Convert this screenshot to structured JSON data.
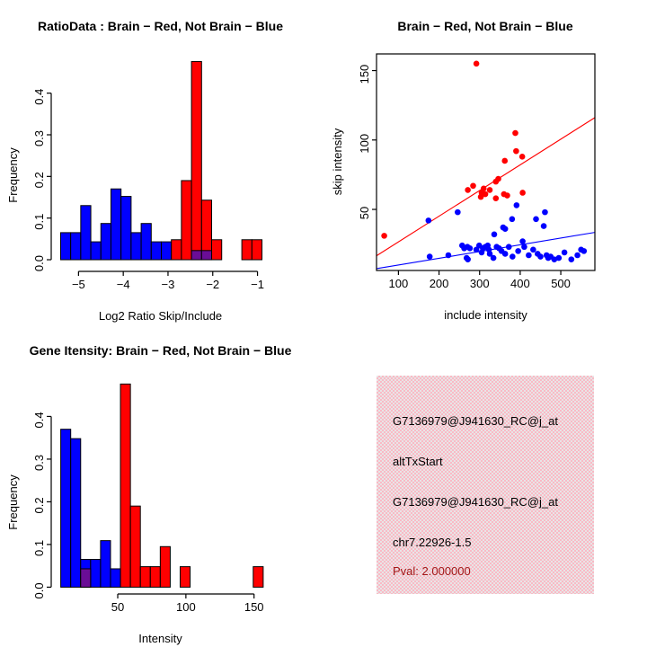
{
  "colors": {
    "red": "#ff0000",
    "blue": "#0000ff",
    "overlap_purple": "#6a0d96",
    "axis_black": "#000000",
    "background": "#ffffff",
    "info_panel_pink": "#f9bac5",
    "info_panel_dither": "#e9e4e6",
    "pval_text": "#a01818",
    "info_text": "#000000"
  },
  "chart_data": [
    {
      "id": "ratio_histogram",
      "type": "bar",
      "title": "RatioData : Brain − Red, Not Brain − Blue",
      "xlabel": "Log2 Ratio Skip/Include",
      "ylabel": "Frequency",
      "legend": "none",
      "grid": false,
      "xlim": [
        -5.61,
        -0.73
      ],
      "ylim": [
        -0.028,
        0.505
      ],
      "bin_width": 0.225,
      "xticks": [
        {
          "v": -5,
          "label": "−5"
        },
        {
          "v": -4,
          "label": "−4"
        },
        {
          "v": -3,
          "label": "−3"
        },
        {
          "v": -2,
          "label": "−2"
        },
        {
          "v": -1,
          "label": "−1"
        }
      ],
      "yticks": [
        {
          "v": 0.0,
          "label": "0.0"
        },
        {
          "v": 0.1,
          "label": "0.1"
        },
        {
          "v": 0.2,
          "label": "0.2"
        },
        {
          "v": 0.3,
          "label": "0.3"
        },
        {
          "v": 0.4,
          "label": "0.4"
        }
      ],
      "bars": [
        {
          "x": -5.4,
          "h": 0.065,
          "color": "blue"
        },
        {
          "x": -5.175,
          "h": 0.065,
          "color": "blue"
        },
        {
          "x": -4.95,
          "h": 0.13,
          "color": "blue"
        },
        {
          "x": -4.725,
          "h": 0.043,
          "color": "blue"
        },
        {
          "x": -4.5,
          "h": 0.087,
          "color": "blue"
        },
        {
          "x": -4.275,
          "h": 0.17,
          "color": "blue"
        },
        {
          "x": -4.05,
          "h": 0.152,
          "color": "blue"
        },
        {
          "x": -3.825,
          "h": 0.065,
          "color": "blue"
        },
        {
          "x": -3.6,
          "h": 0.087,
          "color": "blue"
        },
        {
          "x": -3.375,
          "h": 0.043,
          "color": "blue"
        },
        {
          "x": -3.15,
          "h": 0.043,
          "color": "blue"
        },
        {
          "x": -2.925,
          "h": 0.048,
          "color": "red"
        },
        {
          "x": -2.7,
          "h": 0.19,
          "color": "red"
        },
        {
          "x": -2.475,
          "h": 0.476,
          "color": "red"
        },
        {
          "x": -2.25,
          "h": 0.143,
          "color": "red"
        },
        {
          "x": -2.025,
          "h": 0.048,
          "color": "red"
        },
        {
          "x": -1.35,
          "h": 0.048,
          "color": "red"
        },
        {
          "x": -1.125,
          "h": 0.048,
          "color": "red"
        }
      ],
      "overlap_bars": [
        {
          "x": -2.475,
          "h": 0.022
        },
        {
          "x": -2.25,
          "h": 0.022
        }
      ]
    },
    {
      "id": "skip_include_scatter",
      "type": "scatter",
      "title": "Brain − Red, Not Brain − Blue",
      "xlabel": "include intensity",
      "ylabel": "skip intensity",
      "legend": "none",
      "grid": false,
      "xlim": [
        46,
        584
      ],
      "ylim": [
        6,
        162
      ],
      "xticks": [
        {
          "v": 100,
          "label": "100"
        },
        {
          "v": 200,
          "label": "200"
        },
        {
          "v": 300,
          "label": "300"
        },
        {
          "v": 400,
          "label": "400"
        },
        {
          "v": 500,
          "label": "500"
        }
      ],
      "yticks": [
        {
          "v": 50,
          "label": "50"
        },
        {
          "v": 100,
          "label": "100"
        },
        {
          "v": 150,
          "label": "150"
        }
      ],
      "series": [
        {
          "name": "Not Brain",
          "color": "blue",
          "points": [
            [
              174,
              42
            ],
            [
              177,
              16
            ],
            [
              223,
              17
            ],
            [
              246,
              48
            ],
            [
              257,
              24
            ],
            [
              262,
              22
            ],
            [
              270,
              23
            ],
            [
              276,
              22
            ],
            [
              268,
              15
            ],
            [
              271,
              14
            ],
            [
              292,
              21
            ],
            [
              299,
              24
            ],
            [
              305,
              19
            ],
            [
              308,
              22
            ],
            [
              314,
              23
            ],
            [
              320,
              24
            ],
            [
              323,
              21
            ],
            [
              325,
              18
            ],
            [
              334,
              15
            ],
            [
              336,
              32
            ],
            [
              342,
              23
            ],
            [
              348,
              22
            ],
            [
              354,
              20
            ],
            [
              358,
              37
            ],
            [
              363,
              36
            ],
            [
              363,
              18
            ],
            [
              372,
              23
            ],
            [
              380,
              43
            ],
            [
              381,
              16
            ],
            [
              391,
              53
            ],
            [
              395,
              20
            ],
            [
              406,
              27
            ],
            [
              410,
              23
            ],
            [
              421,
              17
            ],
            [
              432,
              21
            ],
            [
              439,
              43
            ],
            [
              443,
              18
            ],
            [
              450,
              16
            ],
            [
              458,
              38
            ],
            [
              461,
              48
            ],
            [
              465,
              17
            ],
            [
              469,
              15
            ],
            [
              475,
              16
            ],
            [
              484,
              14
            ],
            [
              495,
              15
            ],
            [
              509,
              19
            ],
            [
              526,
              14
            ],
            [
              541,
              17
            ],
            [
              550,
              21
            ],
            [
              557,
              20
            ]
          ]
        },
        {
          "name": "Brain",
          "color": "red",
          "points": [
            [
              65,
              31
            ],
            [
              292,
              155
            ],
            [
              388,
              105
            ],
            [
              390,
              92
            ],
            [
              405,
              88
            ],
            [
              362,
              85
            ],
            [
              346,
              72
            ],
            [
              340,
              70
            ],
            [
              284,
              67
            ],
            [
              271,
              64
            ],
            [
              310,
              65
            ],
            [
              325,
              64
            ],
            [
              305,
              62
            ],
            [
              314,
              61
            ],
            [
              360,
              61
            ],
            [
              406,
              62
            ],
            [
              303,
              59
            ],
            [
              368,
              60
            ],
            [
              340,
              58
            ]
          ]
        }
      ],
      "fit_lines": [
        {
          "name": "not-brain-fit",
          "color": "blue",
          "intercept": 5.1,
          "slope": 0.0485
        },
        {
          "name": "brain-fit",
          "color": "red",
          "intercept": 8.1,
          "slope": 0.185
        }
      ]
    },
    {
      "id": "gene_intensity_histogram",
      "type": "bar",
      "title": "Gene Itensity: Brain − Red, Not Brain − Blue",
      "xlabel": "Intensity",
      "ylabel": "Frequency",
      "legend": "none",
      "grid": false,
      "xlim": [
        1.2,
        161.4
      ],
      "ylim": [
        -0.016,
        0.502
      ],
      "bin_width": 7.3,
      "xticks": [
        {
          "v": 50,
          "label": "50"
        },
        {
          "v": 100,
          "label": "100"
        },
        {
          "v": 150,
          "label": "150"
        }
      ],
      "yticks": [
        {
          "v": 0.0,
          "label": "0.0"
        },
        {
          "v": 0.1,
          "label": "0.1"
        },
        {
          "v": 0.2,
          "label": "0.2"
        },
        {
          "v": 0.3,
          "label": "0.3"
        },
        {
          "v": 0.4,
          "label": "0.4"
        }
      ],
      "bars": [
        {
          "x": 8.2,
          "h": 0.37,
          "color": "blue"
        },
        {
          "x": 15.5,
          "h": 0.348,
          "color": "blue"
        },
        {
          "x": 22.8,
          "h": 0.065,
          "color": "blue"
        },
        {
          "x": 30.1,
          "h": 0.065,
          "color": "blue"
        },
        {
          "x": 37.4,
          "h": 0.109,
          "color": "blue"
        },
        {
          "x": 44.7,
          "h": 0.043,
          "color": "blue"
        },
        {
          "x": 52.0,
          "h": 0.476,
          "color": "red"
        },
        {
          "x": 59.3,
          "h": 0.19,
          "color": "red"
        },
        {
          "x": 66.6,
          "h": 0.048,
          "color": "red"
        },
        {
          "x": 73.9,
          "h": 0.048,
          "color": "red"
        },
        {
          "x": 81.2,
          "h": 0.095,
          "color": "red"
        },
        {
          "x": 95.8,
          "h": 0.048,
          "color": "red"
        },
        {
          "x": 149.4,
          "h": 0.048,
          "color": "red"
        }
      ],
      "overlap_bars": [
        {
          "x": 22.8,
          "h": 0.043
        }
      ]
    }
  ],
  "info_panel": {
    "lines": [
      {
        "text": "G7136979@J941630_RC@j_at",
        "color": "#000000"
      },
      {
        "text": "altTxStart",
        "color": "#000000"
      },
      {
        "text": "G7136979@J941630_RC@j_at",
        "color": "#000000"
      },
      {
        "text": "chr7.22926-1.5",
        "color": "#000000"
      },
      {
        "text": "Pval: 2.000000",
        "color": "#a01818"
      }
    ]
  }
}
